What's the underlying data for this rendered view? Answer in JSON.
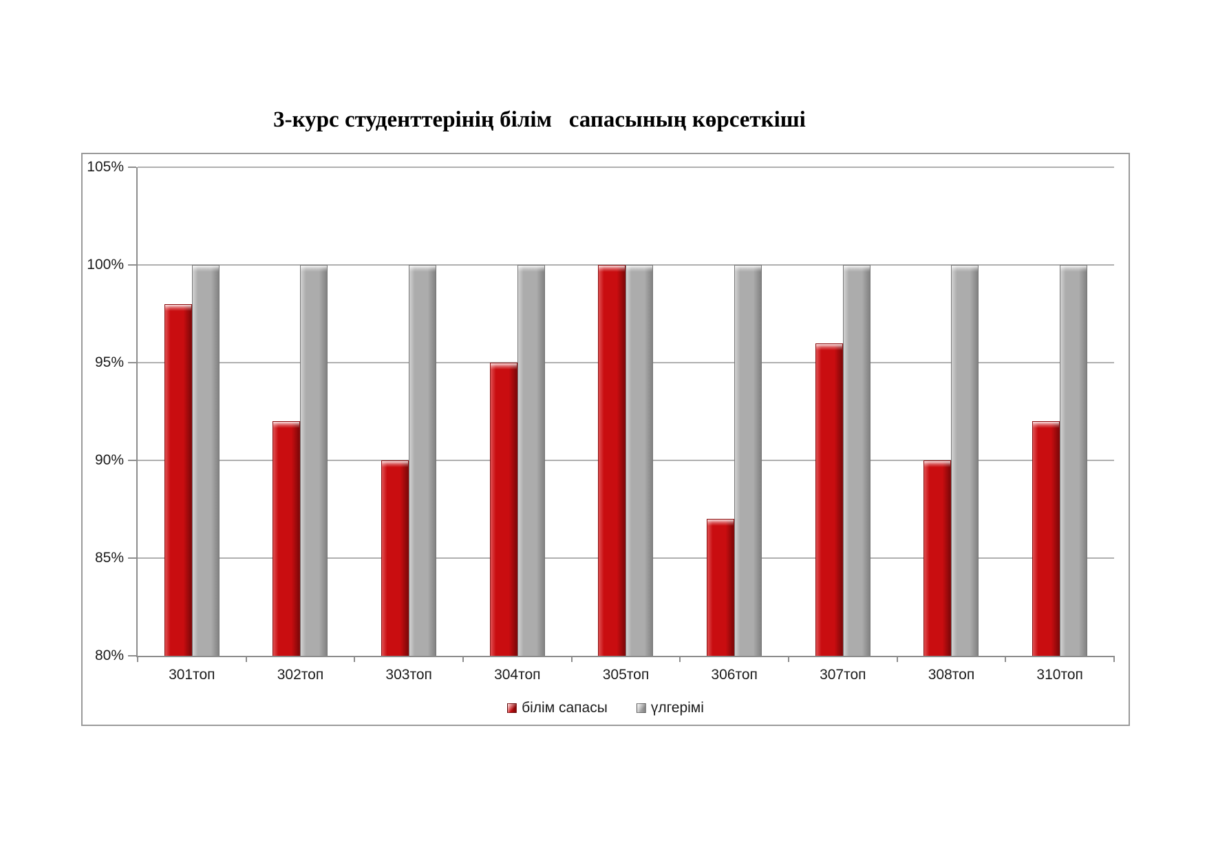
{
  "title": "3-курс студенттерінің білім   сапасының көрсеткіші",
  "chart_data": {
    "type": "bar",
    "title": "3-курс студенттерінің білім   сапасының көрсеткіші",
    "categories": [
      "301топ",
      "302топ",
      "303топ",
      "304топ",
      "305топ",
      "306топ",
      "307топ",
      "308топ",
      "310топ"
    ],
    "series": [
      {
        "name": "білім сапасы",
        "values": [
          98,
          92,
          90,
          95,
          100,
          87,
          96,
          90,
          92
        ],
        "color": "#C90D10",
        "color_light": "#E05052",
        "color_dark": "#7E0708",
        "border_color": "#8A0A0B"
      },
      {
        "name": "үлгерімі",
        "values": [
          100,
          100,
          100,
          100,
          100,
          100,
          100,
          100,
          100
        ],
        "color": "#ACACAC",
        "color_light": "#D2D2D2",
        "color_dark": "#828282",
        "border_color": "#767676"
      }
    ],
    "xlabel": "",
    "ylabel": "",
    "ylim": [
      80,
      105
    ],
    "ytick_step": 5,
    "ytick_labels": [
      "105%",
      "100%",
      "95%",
      "90%",
      "85%",
      "80%"
    ],
    "grid": true,
    "legend_position": "bottom-center"
  },
  "style": {
    "gridline_color": "#AFAFAF",
    "axis_color": "#8C8C8C",
    "frame_border_color": "#999999",
    "text_color": "#1A1A1A",
    "background": "#FFFFFF"
  }
}
